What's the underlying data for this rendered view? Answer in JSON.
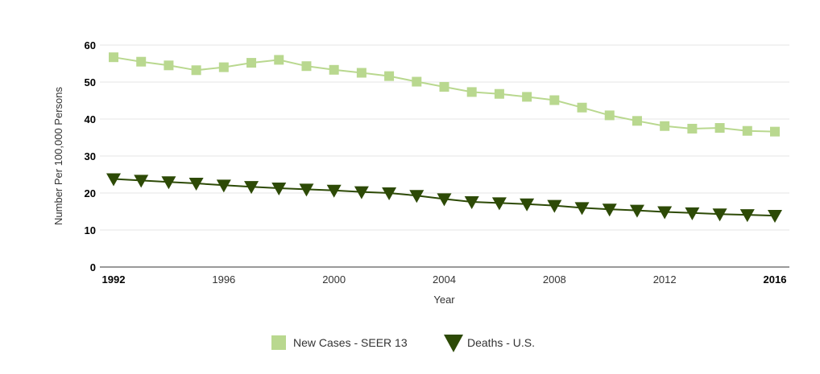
{
  "chart_data": {
    "type": "line",
    "title": "",
    "xlabel": "Year",
    "ylabel": "Number Per 100,000 Persons",
    "xlim": [
      1992,
      2016
    ],
    "ylim": [
      0,
      60
    ],
    "x_ticks": [
      "1992",
      "1996",
      "2000",
      "2004",
      "2008",
      "2012",
      "2016"
    ],
    "bold_x_ticks": [
      "1992",
      "2016"
    ],
    "y_ticks": [
      "0",
      "10",
      "20",
      "30",
      "40",
      "50",
      "60"
    ],
    "grid": "horizontal",
    "legend_position": "bottom",
    "x": [
      1992,
      1993,
      1994,
      1995,
      1996,
      1997,
      1998,
      1999,
      2000,
      2001,
      2002,
      2003,
      2004,
      2005,
      2006,
      2007,
      2008,
      2009,
      2010,
      2011,
      2012,
      2013,
      2014,
      2015,
      2016
    ],
    "series": [
      {
        "name": "New Cases - SEER 13",
        "marker": "square",
        "color": "#b9d88f",
        "values": [
          56.7,
          55.5,
          54.5,
          53.2,
          54.0,
          55.2,
          56.0,
          54.3,
          53.3,
          52.5,
          51.6,
          50.1,
          48.7,
          47.3,
          46.8,
          46.0,
          45.1,
          43.1,
          41.0,
          39.5,
          38.1,
          37.4,
          37.6,
          36.8,
          36.6
        ]
      },
      {
        "name": "Deaths - U.S.",
        "marker": "triangle-down",
        "color": "#2d4a06",
        "values": [
          23.8,
          23.4,
          23.0,
          22.6,
          22.1,
          21.7,
          21.3,
          21.0,
          20.7,
          20.3,
          20.0,
          19.3,
          18.4,
          17.6,
          17.3,
          17.0,
          16.6,
          16.0,
          15.6,
          15.3,
          14.9,
          14.6,
          14.3,
          14.1,
          13.9
        ]
      }
    ]
  }
}
